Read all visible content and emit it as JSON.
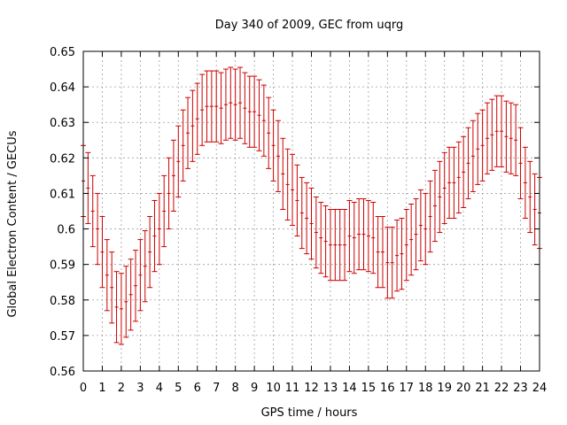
{
  "chart_data": {
    "type": "scatter",
    "title": "Day 340 of 2009, GEC from uqrg",
    "xlabel": "GPS time / hours",
    "ylabel": "Global Electron Content / GECUs",
    "xlim": [
      0,
      24
    ],
    "ylim": [
      0.56,
      0.65
    ],
    "xticks": [
      "0",
      "1",
      "2",
      "3",
      "4",
      "5",
      "6",
      "7",
      "8",
      "9",
      "10",
      "11",
      "12",
      "13",
      "14",
      "15",
      "16",
      "17",
      "18",
      "19",
      "20",
      "21",
      "22",
      "23",
      "24"
    ],
    "yticks": [
      "0.56",
      "0.57",
      "0.58",
      "0.59",
      "0.6",
      "0.61",
      "0.62",
      "0.63",
      "0.64",
      "0.65"
    ],
    "grid": true,
    "series_color": "#cc0000",
    "error": 0.01,
    "series": [
      {
        "x": [
          0,
          0.25,
          0.5,
          0.75,
          1,
          1.25,
          1.5,
          1.75,
          2,
          2.25,
          2.5,
          2.75,
          3,
          3.25,
          3.5,
          3.75,
          4,
          4.25,
          4.5,
          4.75,
          5,
          5.25,
          5.5,
          5.75,
          6,
          6.25,
          6.5,
          6.75,
          7,
          7.25,
          7.5,
          7.75,
          8,
          8.25,
          8.5,
          8.75,
          9,
          9.25,
          9.5,
          9.75,
          10,
          10.25,
          10.5,
          10.75,
          11,
          11.25,
          11.5,
          11.75,
          12,
          12.25,
          12.5,
          12.75,
          13,
          13.25,
          13.5,
          13.75,
          14,
          14.25,
          14.5,
          14.75,
          15,
          15.25,
          15.5,
          15.75,
          16,
          16.25,
          16.5,
          16.75,
          17,
          17.25,
          17.5,
          17.75,
          18,
          18.25,
          18.5,
          18.75,
          19,
          19.25,
          19.5,
          19.75,
          20,
          20.25,
          20.5,
          20.75,
          21,
          21.25,
          21.5,
          21.75,
          22,
          22.25,
          22.5,
          22.75,
          23,
          23.25,
          23.5,
          23.75,
          24
        ],
        "y": [
          0.6135,
          0.6115,
          0.605,
          0.6,
          0.5935,
          0.587,
          0.5835,
          0.578,
          0.5775,
          0.5795,
          0.5815,
          0.584,
          0.587,
          0.5895,
          0.5935,
          0.598,
          0.6,
          0.605,
          0.61,
          0.615,
          0.619,
          0.6235,
          0.627,
          0.629,
          0.631,
          0.6335,
          0.6345,
          0.6345,
          0.6345,
          0.634,
          0.635,
          0.6355,
          0.635,
          0.6355,
          0.634,
          0.633,
          0.633,
          0.632,
          0.6305,
          0.627,
          0.6235,
          0.6205,
          0.6155,
          0.6125,
          0.611,
          0.608,
          0.6045,
          0.603,
          0.6015,
          0.599,
          0.5975,
          0.5965,
          0.5955,
          0.5955,
          0.5955,
          0.5955,
          0.598,
          0.5975,
          0.5985,
          0.5985,
          0.598,
          0.5975,
          0.5935,
          0.5935,
          0.5905,
          0.5905,
          0.5925,
          0.593,
          0.5955,
          0.597,
          0.5985,
          0.601,
          0.6,
          0.6035,
          0.6065,
          0.609,
          0.6115,
          0.613,
          0.613,
          0.6145,
          0.616,
          0.6185,
          0.6205,
          0.6225,
          0.6235,
          0.6255,
          0.6265,
          0.6275,
          0.6275,
          0.626,
          0.6255,
          0.625,
          0.6185,
          0.613,
          0.609,
          0.6055,
          0.6045
        ]
      }
    ]
  }
}
